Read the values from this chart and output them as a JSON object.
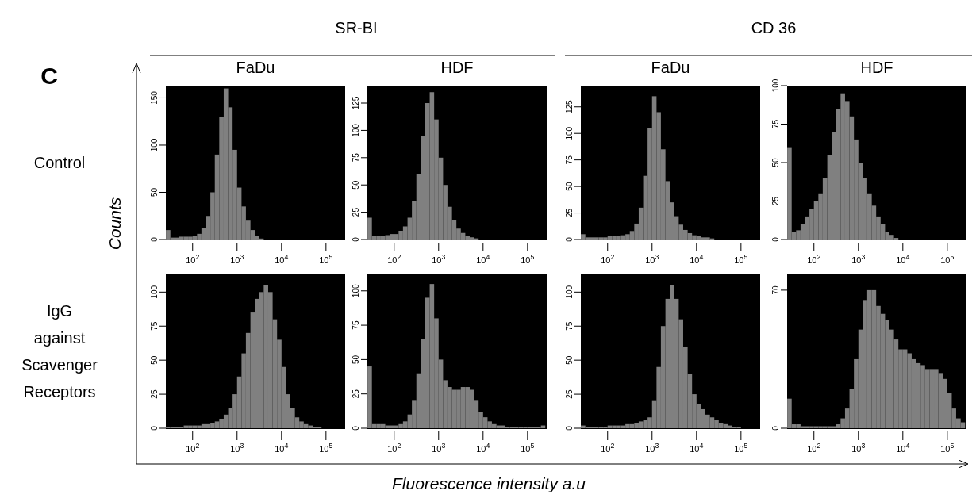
{
  "chart_data": [
    {
      "type": "histogram",
      "title": "FaDu",
      "ylabel": "Counts",
      "annotations": [
        "C",
        "SR-BI",
        "Control"
      ],
      "log": "x",
      "xlim": [
        25,
        270000
      ],
      "ylim": [
        0,
        163
      ],
      "yticks": [
        0,
        50,
        100,
        150
      ],
      "xticks": [
        {
          "value": 100,
          "label": "10$^{2}$"
        },
        {
          "value": 1000,
          "label": "10$^{3}$"
        },
        {
          "value": 10000,
          "label": "10$^{4}$"
        },
        {
          "value": 100000,
          "label": "10$^{5}$"
        }
      ],
      "color": "#808080",
      "bins": [
        25.1,
        31.6,
        39.8,
        50.1,
        63.1,
        79.4,
        100,
        126,
        158,
        200,
        251,
        316,
        398,
        501,
        631,
        794,
        1000,
        1260,
        1580,
        2000,
        2510,
        3160,
        3980,
        5010,
        6310,
        7940,
        10000,
        12600,
        15800,
        20000,
        25100,
        31600,
        39800,
        50100,
        63100,
        79400,
        100000,
        126000,
        158000,
        200000,
        251000
      ],
      "values": [
        10,
        2,
        2,
        3,
        3,
        3,
        4,
        6,
        12,
        25,
        50,
        90,
        130,
        160,
        140,
        95,
        55,
        35,
        20,
        10,
        4,
        1,
        0,
        0,
        0,
        0,
        0,
        0,
        0,
        0,
        0,
        0,
        0,
        0,
        0,
        0,
        0,
        0,
        0,
        0
      ]
    },
    {
      "type": "histogram",
      "title": "HDF",
      "log": "x",
      "xlim": [
        25,
        270000
      ],
      "ylim": [
        0,
        141
      ],
      "yticks": [
        0,
        25,
        50,
        75,
        100,
        125
      ],
      "xticks": [
        {
          "value": 100,
          "label": "10$^{2}$"
        },
        {
          "value": 1000,
          "label": "10$^{3}$"
        },
        {
          "value": 10000,
          "label": "10$^{4}$"
        },
        {
          "value": 100000,
          "label": "10$^{5}$"
        }
      ],
      "color": "#808080",
      "bins": [
        25.1,
        31.6,
        39.8,
        50.1,
        63.1,
        79.4,
        100,
        126,
        158,
        200,
        251,
        316,
        398,
        501,
        631,
        794,
        1000,
        1260,
        1580,
        2000,
        2510,
        3160,
        3980,
        5010,
        6310,
        7940,
        10000,
        12600,
        15800,
        20000,
        25100,
        31600,
        39800,
        50100,
        63100,
        79400,
        100000,
        126000,
        158000,
        200000,
        251000
      ],
      "values": [
        20,
        3,
        3,
        3,
        4,
        5,
        5,
        8,
        12,
        20,
        35,
        60,
        95,
        125,
        135,
        110,
        75,
        50,
        30,
        18,
        10,
        6,
        3,
        2,
        1,
        0,
        0,
        0,
        0,
        0,
        0,
        0,
        0,
        0,
        0,
        0,
        0,
        0,
        0,
        0
      ]
    },
    {
      "type": "histogram",
      "title": "FaDu",
      "annotations": [
        "CD 36"
      ],
      "log": "x",
      "xlim": [
        25,
        270000
      ],
      "ylim": [
        0,
        145
      ],
      "yticks": [
        0,
        25,
        50,
        75,
        100,
        125
      ],
      "xticks": [
        {
          "value": 100,
          "label": "10$^{2}$"
        },
        {
          "value": 1000,
          "label": "10$^{3}$"
        },
        {
          "value": 10000,
          "label": "10$^{4}$"
        },
        {
          "value": 100000,
          "label": "10$^{5}$"
        }
      ],
      "color": "#808080",
      "bins": [
        25.1,
        31.6,
        39.8,
        50.1,
        63.1,
        79.4,
        100,
        126,
        158,
        200,
        251,
        316,
        398,
        501,
        631,
        794,
        1000,
        1260,
        1580,
        2000,
        2510,
        3160,
        3980,
        5010,
        6310,
        7940,
        10000,
        12600,
        15800,
        20000,
        25100,
        31600,
        39800,
        50100,
        63100,
        79400,
        100000,
        126000,
        158000,
        200000,
        251000
      ],
      "values": [
        5,
        2,
        2,
        2,
        2,
        2,
        3,
        3,
        3,
        4,
        5,
        8,
        15,
        30,
        60,
        105,
        135,
        120,
        85,
        55,
        35,
        22,
        14,
        9,
        6,
        4,
        3,
        2,
        2,
        1,
        0,
        0,
        0,
        0,
        0,
        0,
        0,
        0,
        0,
        0
      ]
    },
    {
      "type": "histogram",
      "title": "HDF",
      "log": "x",
      "xlim": [
        25,
        270000
      ],
      "ylim": [
        0,
        100
      ],
      "yticks": [
        0,
        25,
        50,
        75,
        100
      ],
      "xticks": [
        {
          "value": 100,
          "label": "10$^{2}$"
        },
        {
          "value": 1000,
          "label": "10$^{3}$"
        },
        {
          "value": 10000,
          "label": "10$^{4}$"
        },
        {
          "value": 100000,
          "label": "10$^{5}$"
        }
      ],
      "color": "#808080",
      "bins": [
        25.1,
        31.6,
        39.8,
        50.1,
        63.1,
        79.4,
        100,
        126,
        158,
        200,
        251,
        316,
        398,
        501,
        631,
        794,
        1000,
        1260,
        1580,
        2000,
        2510,
        3160,
        3980,
        5010,
        6310,
        7940,
        10000,
        12600,
        15800,
        20000,
        25100,
        31600,
        39800,
        50100,
        63100,
        79400,
        100000,
        126000,
        158000,
        200000,
        251000
      ],
      "values": [
        60,
        5,
        6,
        10,
        15,
        20,
        25,
        30,
        40,
        55,
        70,
        85,
        95,
        90,
        80,
        65,
        50,
        40,
        30,
        22,
        15,
        10,
        5,
        3,
        1,
        0,
        0,
        0,
        0,
        0,
        0,
        0,
        0,
        0,
        0,
        0,
        0,
        0,
        0,
        0
      ]
    },
    {
      "type": "histogram",
      "annotations": [
        "IgG against Scavenger Receptors"
      ],
      "log": "x",
      "xlim": [
        25,
        270000
      ],
      "ylim": [
        0,
        113
      ],
      "yticks": [
        0,
        25,
        50,
        75,
        100
      ],
      "xticks": [
        {
          "value": 100,
          "label": "10$^{2}$"
        },
        {
          "value": 1000,
          "label": "10$^{3}$"
        },
        {
          "value": 10000,
          "label": "10$^{4}$"
        },
        {
          "value": 100000,
          "label": "10$^{5}$"
        }
      ],
      "color": "#808080",
      "bins": [
        25.1,
        31.6,
        39.8,
        50.1,
        63.1,
        79.4,
        100,
        126,
        158,
        200,
        251,
        316,
        398,
        501,
        631,
        794,
        1000,
        1260,
        1580,
        2000,
        2510,
        3160,
        3980,
        5010,
        6310,
        7940,
        10000,
        12600,
        15800,
        20000,
        25100,
        31600,
        39800,
        50100,
        63100,
        79400,
        100000,
        126000,
        158000,
        200000,
        251000
      ],
      "values": [
        1,
        1,
        1,
        1,
        2,
        2,
        2,
        2,
        3,
        3,
        4,
        5,
        7,
        10,
        15,
        25,
        38,
        55,
        70,
        85,
        95,
        100,
        105,
        100,
        80,
        65,
        45,
        25,
        15,
        8,
        5,
        3,
        2,
        1,
        1,
        0,
        0,
        0,
        0,
        0
      ]
    },
    {
      "type": "histogram",
      "xlabel": "Fluorescence intensity a.u",
      "log": "x",
      "xlim": [
        25,
        270000
      ],
      "ylim": [
        0,
        112
      ],
      "yticks": [
        0,
        25,
        50,
        75,
        100
      ],
      "xticks": [
        {
          "value": 100,
          "label": "10$^{2}$"
        },
        {
          "value": 1000,
          "label": "10$^{3}$"
        },
        {
          "value": 10000,
          "label": "10$^{4}$"
        },
        {
          "value": 100000,
          "label": "10$^{5}$"
        }
      ],
      "color": "#808080",
      "bins": [
        25.1,
        31.6,
        39.8,
        50.1,
        63.1,
        79.4,
        100,
        126,
        158,
        200,
        251,
        316,
        398,
        501,
        631,
        794,
        1000,
        1260,
        1580,
        2000,
        2510,
        3160,
        3980,
        5010,
        6310,
        7940,
        10000,
        12600,
        15800,
        20000,
        25100,
        31600,
        39800,
        50100,
        63100,
        79400,
        100000,
        126000,
        158000,
        200000,
        251000
      ],
      "values": [
        45,
        3,
        3,
        3,
        2,
        2,
        2,
        3,
        5,
        10,
        20,
        40,
        65,
        95,
        105,
        80,
        50,
        35,
        30,
        28,
        28,
        30,
        30,
        28,
        20,
        12,
        8,
        5,
        3,
        2,
        2,
        1,
        1,
        1,
        1,
        1,
        1,
        1,
        1,
        2
      ]
    },
    {
      "type": "histogram",
      "log": "x",
      "xlim": [
        25,
        270000
      ],
      "ylim": [
        0,
        113
      ],
      "yticks": [
        0,
        25,
        50,
        75,
        100
      ],
      "xticks": [
        {
          "value": 100,
          "label": "10$^{2}$"
        },
        {
          "value": 1000,
          "label": "10$^{3}$"
        },
        {
          "value": 10000,
          "label": "10$^{4}$"
        },
        {
          "value": 100000,
          "label": "10$^{5}$"
        }
      ],
      "color": "#808080",
      "bins": [
        25.1,
        31.6,
        39.8,
        50.1,
        63.1,
        79.4,
        100,
        126,
        158,
        200,
        251,
        316,
        398,
        501,
        631,
        794,
        1000,
        1260,
        1580,
        2000,
        2510,
        3160,
        3980,
        5010,
        6310,
        7940,
        10000,
        12600,
        15800,
        20000,
        25100,
        31600,
        39800,
        50100,
        63100,
        79400,
        100000,
        126000,
        158000,
        200000,
        251000
      ],
      "values": [
        2,
        1,
        1,
        1,
        1,
        1,
        2,
        2,
        2,
        2,
        3,
        3,
        4,
        5,
        6,
        8,
        20,
        45,
        75,
        95,
        105,
        95,
        80,
        60,
        40,
        25,
        18,
        14,
        10,
        8,
        6,
        4,
        3,
        2,
        1,
        1,
        0,
        0,
        0,
        0
      ]
    },
    {
      "type": "histogram",
      "log": "x",
      "xlim": [
        25,
        270000
      ],
      "ylim": [
        0,
        78
      ],
      "yticks": [
        0,
        70
      ],
      "xticks": [
        {
          "value": 100,
          "label": "10$^{2}$"
        },
        {
          "value": 1000,
          "label": "10$^{3}$"
        },
        {
          "value": 10000,
          "label": "10$^{4}$"
        },
        {
          "value": 100000,
          "label": "10$^{5}$"
        }
      ],
      "color": "#808080",
      "bins": [
        25.1,
        31.6,
        39.8,
        50.1,
        63.1,
        79.4,
        100,
        126,
        158,
        200,
        251,
        316,
        398,
        501,
        631,
        794,
        1000,
        1260,
        1580,
        2000,
        2510,
        3160,
        3980,
        5010,
        6310,
        7940,
        10000,
        12600,
        15800,
        20000,
        25100,
        31600,
        39800,
        50100,
        63100,
        79400,
        100000,
        126000,
        158000,
        200000,
        251000
      ],
      "values": [
        15,
        2,
        2,
        1,
        1,
        1,
        1,
        1,
        1,
        1,
        1,
        2,
        5,
        10,
        20,
        35,
        50,
        65,
        70,
        70,
        62,
        58,
        55,
        50,
        45,
        40,
        40,
        38,
        35,
        33,
        32,
        30,
        30,
        30,
        28,
        25,
        18,
        10,
        5,
        3
      ]
    }
  ]
}
